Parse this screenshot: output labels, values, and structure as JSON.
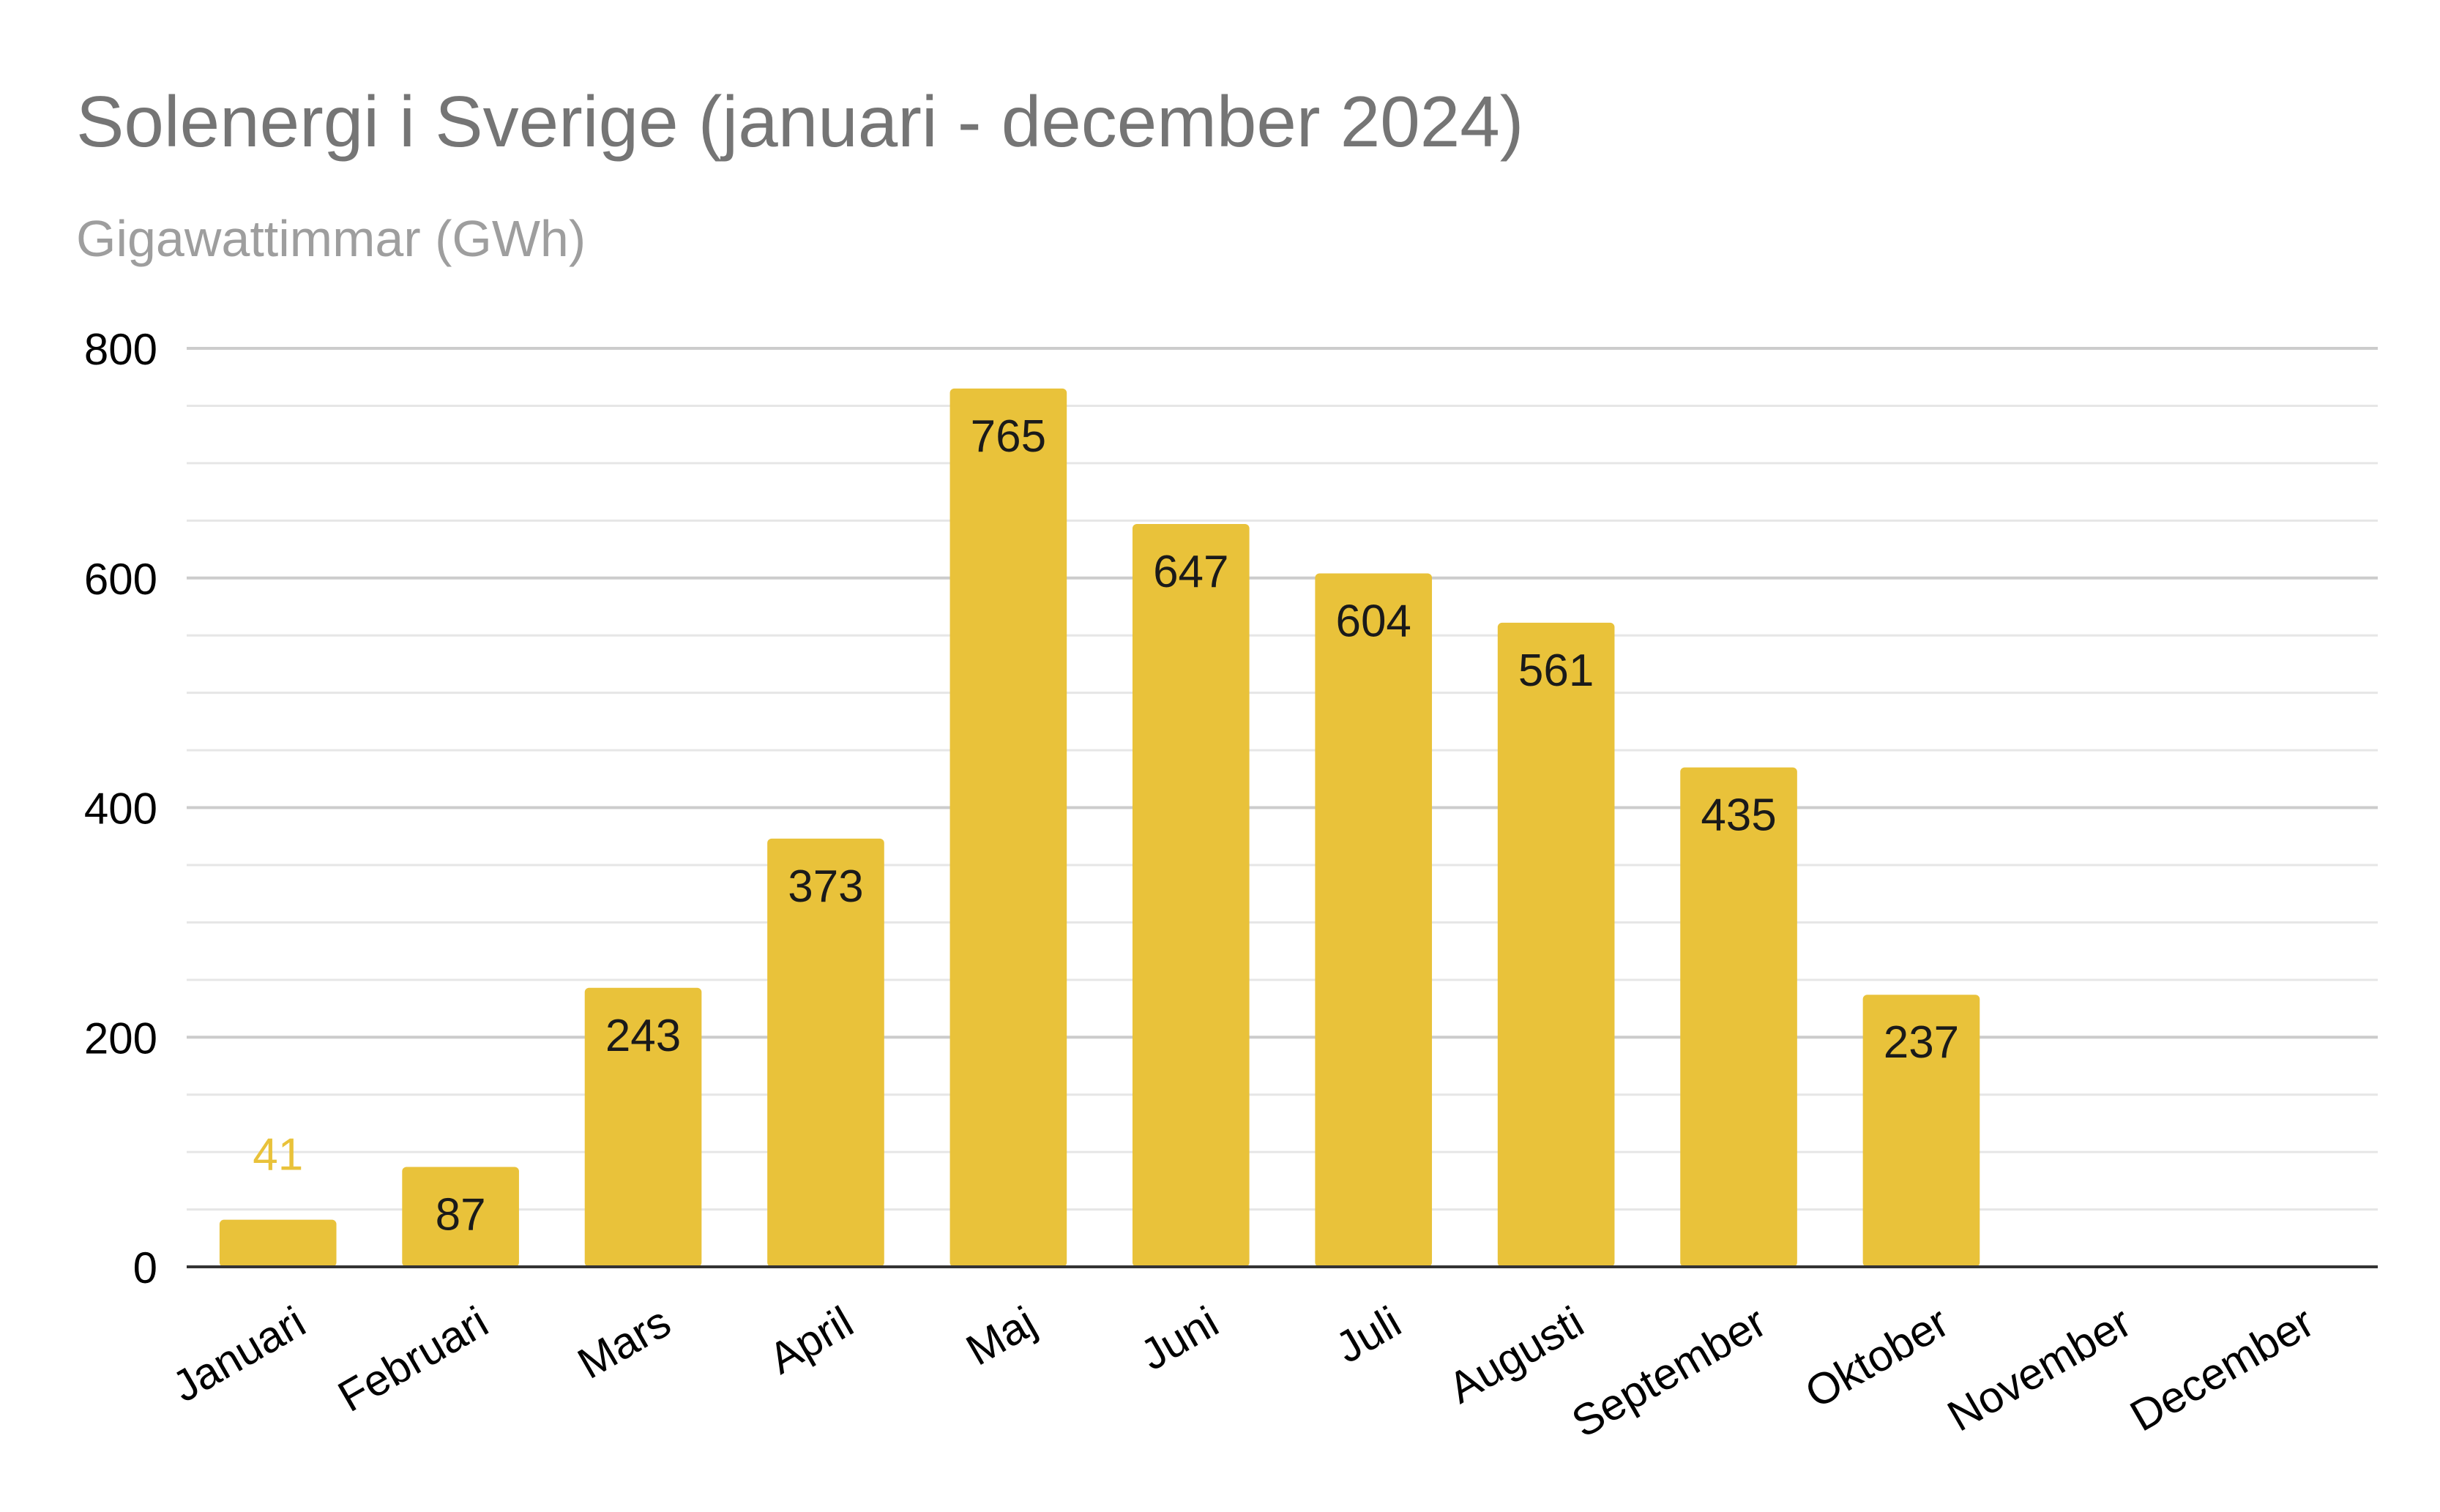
{
  "chart_data": {
    "type": "bar",
    "title": "Solenergi i Sverige (januari - december 2024)",
    "subtitle": "Gigawattimmar (GWh)",
    "categories": [
      "Januari",
      "Februari",
      "Mars",
      "April",
      "Maj",
      "Juni",
      "Juli",
      "Augusti",
      "September",
      "Oktober",
      "November",
      "December"
    ],
    "values": [
      41,
      87,
      243,
      373,
      765,
      647,
      604,
      561,
      435,
      237,
      null,
      null
    ],
    "data_labels": [
      "41",
      "87",
      "243",
      "373",
      "765",
      "647",
      "604",
      "561",
      "435",
      "237",
      "",
      ""
    ],
    "ylim": [
      0,
      800
    ],
    "yticks": [
      0,
      200,
      400,
      600,
      800
    ],
    "ytick_labels": [
      "0",
      "200",
      "400",
      "600",
      "800"
    ],
    "minor_gridlines": true,
    "legend": "none",
    "colors": {
      "bar": "#E9C23A",
      "outside_label": "#E9C23A",
      "inside_label": "#1a1a1a",
      "title": "#757575",
      "subtitle": "#9e9e9e",
      "axis_text": "#000000",
      "grid_major": "#cccccc",
      "grid_minor": "#e6e6e6",
      "baseline": "#333333"
    }
  }
}
